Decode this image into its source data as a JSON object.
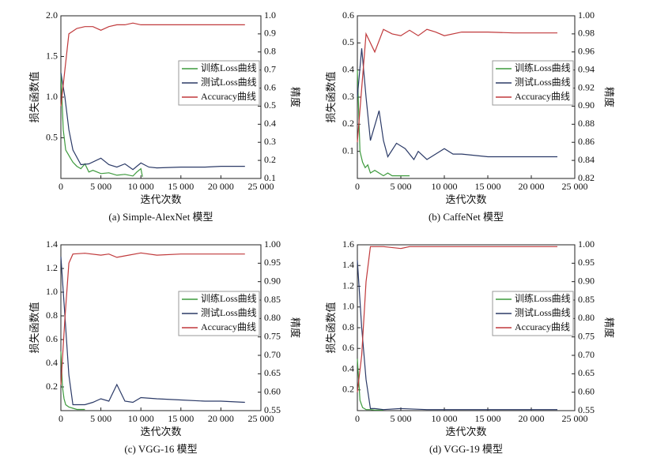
{
  "chart_data": [
    {
      "type": "line",
      "caption": "(a) Simple-AlexNet 模型",
      "xlabel": "迭代次数",
      "ylabel": "损失函数值",
      "y2label": "精度",
      "legend": "center right",
      "xlim": [
        0,
        25000
      ],
      "xticks": [
        0,
        {
          "value": 5000,
          "label": "5 000"
        },
        {
          "value": 10000,
          "label": "10 000"
        },
        {
          "value": 15000,
          "label": "15 000"
        },
        {
          "value": 20000,
          "label": "20 000"
        },
        {
          "value": 25000,
          "label": "25 000"
        }
      ],
      "ylim": [
        0,
        2
      ],
      "yticks": [
        0.5,
        {
          "value": 1,
          "label": "1.0"
        },
        1.5,
        {
          "value": 2,
          "label": "2.0"
        }
      ],
      "y2lim": [
        0.1,
        1
      ],
      "y2ticks": [
        0.1,
        0.2,
        0.3,
        0.4,
        0.5,
        0.6,
        0.7,
        0.8,
        0.9,
        {
          "value": 1,
          "label": "1.0"
        }
      ],
      "series": [
        {
          "name": "训练Loss曲线",
          "color": "#3d9a3d",
          "x": [
            0,
            300,
            600,
            900,
            1200,
            1500,
            2000,
            2500,
            3000,
            3500,
            4000,
            5000,
            6000,
            7000,
            8000,
            9000,
            9500,
            10000,
            10200
          ],
          "values": [
            1.3,
            0.6,
            0.35,
            0.3,
            0.25,
            0.2,
            0.15,
            0.12,
            0.18,
            0.08,
            0.1,
            0.06,
            0.07,
            0.04,
            0.05,
            0.03,
            0.08,
            0.12,
            0.02
          ]
        },
        {
          "name": "测试Loss曲线",
          "color": "#2b3a67",
          "x": [
            0,
            500,
            1000,
            1500,
            2500,
            3500,
            5000,
            6000,
            7000,
            8000,
            9000,
            10000,
            11000,
            12000,
            15000,
            18000,
            20000,
            23000
          ],
          "values": [
            1.3,
            1.0,
            0.6,
            0.35,
            0.17,
            0.18,
            0.25,
            0.17,
            0.14,
            0.18,
            0.11,
            0.19,
            0.14,
            0.13,
            0.14,
            0.14,
            0.15,
            0.15
          ]
        },
        {
          "name": "Accuracy曲线",
          "color": "#c0393b",
          "axis": "y2",
          "x": [
            0,
            1000,
            2000,
            3000,
            4000,
            5000,
            6000,
            7000,
            8000,
            9000,
            10000,
            12000,
            15000,
            18000,
            20000,
            23000
          ],
          "values": [
            0.5,
            0.9,
            0.93,
            0.94,
            0.94,
            0.92,
            0.94,
            0.95,
            0.95,
            0.96,
            0.95,
            0.95,
            0.95,
            0.95,
            0.95,
            0.95
          ]
        }
      ]
    },
    {
      "type": "line",
      "caption": "(b) CaffeNet 模型",
      "xlabel": "迭代次数",
      "ylabel": "损失函数值",
      "y2label": "精度",
      "legend": "center right",
      "xlim": [
        0,
        25000
      ],
      "xticks": [
        0,
        {
          "value": 5000,
          "label": "5 000"
        },
        {
          "value": 10000,
          "label": "10 000"
        },
        {
          "value": 15000,
          "label": "15 000"
        },
        {
          "value": 20000,
          "label": "20 000"
        },
        {
          "value": 25000,
          "label": "25 000"
        }
      ],
      "ylim": [
        0,
        0.6
      ],
      "yticks": [
        0.1,
        0.2,
        0.3,
        0.4,
        0.5,
        0.6
      ],
      "y2lim": [
        0.82,
        1
      ],
      "y2ticks": [
        0.82,
        0.84,
        0.86,
        0.88,
        {
          "value": 0.9,
          "label": "0.90"
        },
        0.92,
        0.94,
        0.96,
        0.98,
        {
          "value": 1,
          "label": "1.00"
        }
      ],
      "series": [
        {
          "name": "训练Loss曲线",
          "color": "#3d9a3d",
          "x": [
            0,
            300,
            600,
            900,
            1200,
            1500,
            2000,
            2500,
            3000,
            3500,
            4000,
            5000,
            6000
          ],
          "values": [
            0.4,
            0.1,
            0.06,
            0.04,
            0.05,
            0.02,
            0.03,
            0.02,
            0.01,
            0.02,
            0.01,
            0.01,
            0.01
          ]
        },
        {
          "name": "测试Loss曲线",
          "color": "#2b3a67",
          "x": [
            0,
            500,
            1000,
            1500,
            2500,
            3000,
            3500,
            4500,
            5500,
            6500,
            7000,
            8000,
            9000,
            10000,
            11000,
            12000,
            15000,
            18000,
            20000,
            23000
          ],
          "values": [
            0.3,
            0.48,
            0.3,
            0.14,
            0.25,
            0.14,
            0.08,
            0.13,
            0.11,
            0.07,
            0.1,
            0.07,
            0.09,
            0.11,
            0.09,
            0.09,
            0.08,
            0.08,
            0.08,
            0.08
          ]
        },
        {
          "name": "Accuracy曲线",
          "color": "#c0393b",
          "axis": "y2",
          "x": [
            0,
            500,
            1000,
            2000,
            3000,
            4000,
            5000,
            6000,
            7000,
            8000,
            9000,
            10000,
            12000,
            15000,
            18000,
            20000,
            23000
          ],
          "values": [
            0.86,
            0.92,
            0.98,
            0.96,
            0.985,
            0.98,
            0.978,
            0.984,
            0.978,
            0.985,
            0.982,
            0.978,
            0.982,
            0.982,
            0.981,
            0.981,
            0.981
          ]
        }
      ]
    },
    {
      "type": "line",
      "caption": "(c) VGG-16 模型",
      "xlabel": "迭代次数",
      "ylabel": "损失函数值",
      "y2label": "精度",
      "legend": "center right",
      "xlim": [
        0,
        25000
      ],
      "xticks": [
        0,
        {
          "value": 5000,
          "label": "5 000"
        },
        {
          "value": 10000,
          "label": "10 000"
        },
        {
          "value": 15000,
          "label": "15 000"
        },
        {
          "value": 20000,
          "label": "20 000"
        },
        {
          "value": 25000,
          "label": "25 000"
        }
      ],
      "ylim": [
        0,
        1.4
      ],
      "yticks": [
        0.2,
        0.4,
        0.6,
        0.8,
        {
          "value": 1,
          "label": "1.0"
        },
        1.2,
        1.4
      ],
      "y2lim": [
        0.55,
        1
      ],
      "y2ticks": [
        0.55,
        {
          "value": 0.6,
          "label": "0.60"
        },
        0.65,
        {
          "value": 0.7,
          "label": "0.70"
        },
        0.75,
        {
          "value": 0.8,
          "label": "0.80"
        },
        0.85,
        {
          "value": 0.9,
          "label": "0.90"
        },
        0.95,
        {
          "value": 1,
          "label": "1.00"
        }
      ],
      "series": [
        {
          "name": "训练Loss曲线",
          "color": "#3d9a3d",
          "x": [
            0,
            200,
            400,
            600,
            800,
            1000,
            1500,
            2000,
            2500,
            3000
          ],
          "values": [
            0.5,
            0.2,
            0.1,
            0.05,
            0.04,
            0.03,
            0.02,
            0.01,
            0.01,
            0.01
          ]
        },
        {
          "name": "测试Loss曲线",
          "color": "#2b3a67",
          "x": [
            0,
            500,
            1000,
            1500,
            2000,
            3000,
            4000,
            5000,
            6000,
            7000,
            8000,
            9000,
            10000,
            12000,
            15000,
            18000,
            20000,
            23000
          ],
          "values": [
            1.3,
            0.8,
            0.3,
            0.05,
            0.05,
            0.05,
            0.07,
            0.1,
            0.08,
            0.22,
            0.08,
            0.07,
            0.11,
            0.1,
            0.09,
            0.08,
            0.08,
            0.07
          ]
        },
        {
          "name": "Accuracy曲线",
          "color": "#c0393b",
          "axis": "y2",
          "x": [
            0,
            500,
            1000,
            1500,
            3000,
            5000,
            6000,
            7000,
            8000,
            10000,
            12000,
            15000,
            18000,
            20000,
            23000
          ],
          "values": [
            0.62,
            0.8,
            0.95,
            0.975,
            0.977,
            0.972,
            0.975,
            0.966,
            0.97,
            0.978,
            0.972,
            0.975,
            0.975,
            0.975,
            0.975
          ]
        }
      ]
    },
    {
      "type": "line",
      "caption": "(d) VGG-19 模型",
      "xlabel": "迭代次数",
      "ylabel": "损失函数值",
      "y2label": "精度",
      "legend": "center right",
      "xlim": [
        0,
        25000
      ],
      "xticks": [
        0,
        {
          "value": 5000,
          "label": "5 000"
        },
        {
          "value": 10000,
          "label": "10 000"
        },
        {
          "value": 15000,
          "label": "15 000"
        },
        {
          "value": 20000,
          "label": "20 000"
        },
        {
          "value": 25000,
          "label": "25 000"
        }
      ],
      "ylim": [
        0,
        1.6
      ],
      "yticks": [
        0.2,
        0.4,
        0.6,
        0.8,
        {
          "value": 1,
          "label": "1.0"
        },
        1.2,
        1.4,
        1.6
      ],
      "y2lim": [
        0.55,
        1
      ],
      "y2ticks": [
        0.55,
        {
          "value": 0.6,
          "label": "0.60"
        },
        0.65,
        {
          "value": 0.7,
          "label": "0.70"
        },
        0.75,
        {
          "value": 0.8,
          "label": "0.80"
        },
        0.85,
        {
          "value": 0.9,
          "label": "0.90"
        },
        0.95,
        {
          "value": 1,
          "label": "1.00"
        }
      ],
      "series": [
        {
          "name": "训练Loss曲线",
          "color": "#3d9a3d",
          "x": [
            0,
            300,
            600,
            1000,
            1500,
            2000,
            3000
          ],
          "values": [
            0.5,
            0.1,
            0.03,
            0.01,
            0.01,
            0.005,
            0.005
          ]
        },
        {
          "name": "测试Loss曲线",
          "color": "#2b3a67",
          "x": [
            0,
            500,
            1000,
            1500,
            2000,
            3000,
            5000,
            8000,
            10000,
            15000,
            20000,
            23000
          ],
          "values": [
            1.45,
            0.8,
            0.3,
            0.02,
            0.02,
            0.01,
            0.02,
            0.01,
            0.01,
            0.01,
            0.01,
            0.01
          ]
        },
        {
          "name": "Accuracy曲线",
          "color": "#c0393b",
          "axis": "y2",
          "x": [
            0,
            500,
            1000,
            1500,
            3000,
            5000,
            6000,
            8000,
            10000,
            15000,
            20000,
            23000
          ],
          "values": [
            0.6,
            0.7,
            0.9,
            0.995,
            0.995,
            0.99,
            0.995,
            0.995,
            0.995,
            0.995,
            0.995,
            0.995
          ]
        }
      ]
    }
  ]
}
